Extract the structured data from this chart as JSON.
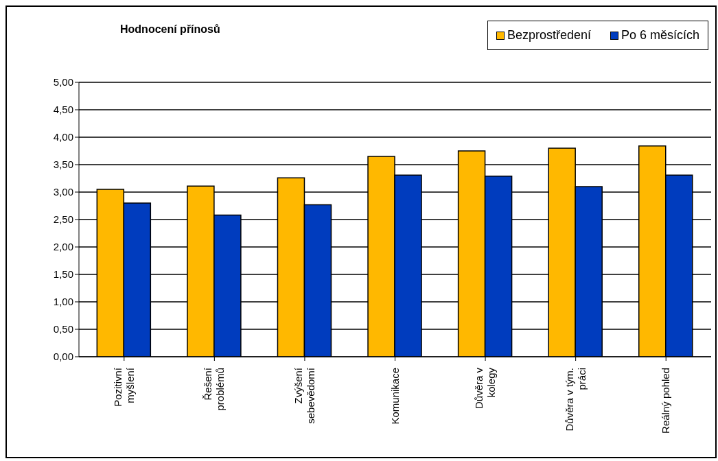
{
  "chart_data": {
    "type": "bar",
    "title": "Hodnocení přínosů",
    "categories": [
      "Pozitivní myšlení",
      "Řešení problémů",
      "Zvýšení sebevědomí",
      "Komunikace",
      "Důvěra v kolegy",
      "Důvěra v tým. práci",
      "Reálný pohled"
    ],
    "series": [
      {
        "name": "Bezprostředení",
        "color": "#ffb800",
        "values": [
          3.05,
          3.11,
          3.26,
          3.65,
          3.75,
          3.8,
          3.84
        ]
      },
      {
        "name": "Po 6 měsících",
        "color": "#003cbe",
        "values": [
          2.8,
          2.58,
          2.77,
          3.31,
          3.29,
          3.1,
          3.31
        ]
      }
    ],
    "ylim": [
      0,
      5
    ],
    "yticks": [
      {
        "value": 0,
        "label": "0,00"
      },
      {
        "value": 0.5,
        "label": "0,50"
      },
      {
        "value": 1,
        "label": "1,00"
      },
      {
        "value": 1.5,
        "label": "1,50"
      },
      {
        "value": 2,
        "label": "2,00"
      },
      {
        "value": 2.5,
        "label": "2,50"
      },
      {
        "value": 3,
        "label": "3,00"
      },
      {
        "value": 3.5,
        "label": "3,50"
      },
      {
        "value": 4,
        "label": "4,00"
      },
      {
        "value": 4.5,
        "label": "4,50"
      },
      {
        "value": 5,
        "label": "5,00"
      }
    ],
    "grid": "y",
    "legend": "top right"
  }
}
